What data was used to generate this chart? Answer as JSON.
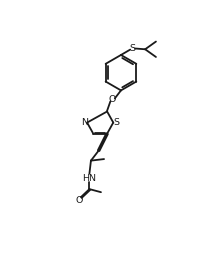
{
  "bg_color": "#ffffff",
  "line_color": "#1a1a1a",
  "line_width": 1.3,
  "figsize": [
    2.0,
    2.72
  ],
  "dpi": 100,
  "xlim": [
    0,
    10
  ],
  "ylim": [
    0,
    13.6
  ]
}
